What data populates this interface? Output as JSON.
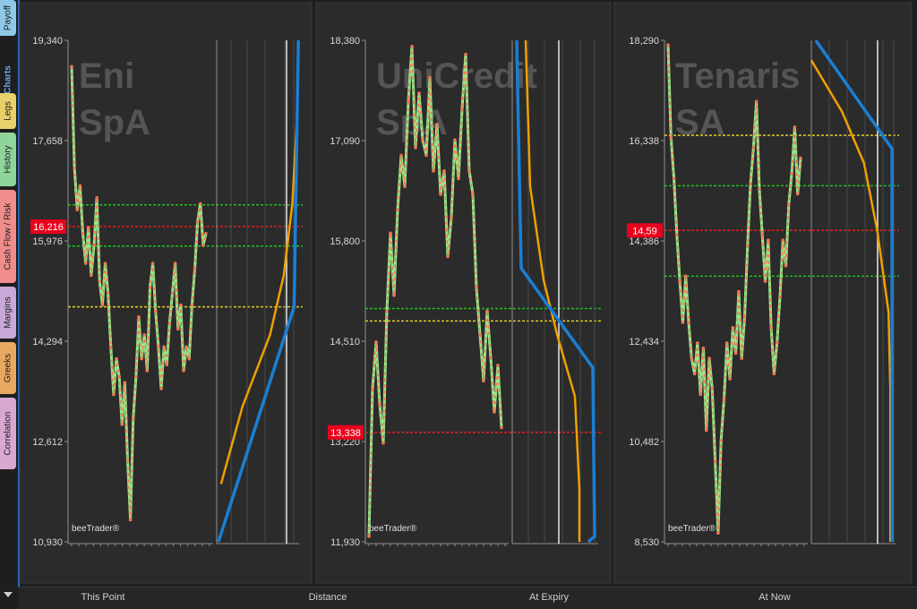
{
  "sidebar": {
    "tabs": [
      {
        "label": "Payoff",
        "color": "#8fc8e6",
        "active": false
      },
      {
        "label": "Charts",
        "color": "#6aa6e8",
        "active": true
      },
      {
        "label": "Legs",
        "color": "#e8d06a",
        "active": false
      },
      {
        "label": "History",
        "color": "#8fd49a",
        "active": false
      },
      {
        "label": "Cash Flow / Risk",
        "color": "#f08c8c",
        "active": false
      },
      {
        "label": "Margins",
        "color": "#c8a8d8",
        "active": false
      },
      {
        "label": "Greeks",
        "color": "#e8a860",
        "active": false
      },
      {
        "label": "Correlation",
        "color": "#d8a8d0",
        "active": false
      }
    ]
  },
  "bottom_bar": {
    "labels": [
      "This Point",
      "Distance",
      "At Expiry",
      "At Now"
    ]
  },
  "colors": {
    "panel_bg": "#2b2b2b",
    "price_orange": "#f07850",
    "price_green": "#90ee90",
    "curve_blue": "#1a7fd4",
    "curve_orange": "#f0a000",
    "line_green": "#20c020",
    "line_yellow": "#e0d020",
    "line_red": "#e02020",
    "marker_red": "#e8001c"
  },
  "chart_data": [
    {
      "type": "line",
      "title": "Eni SpA",
      "watermark": "beeTrader®",
      "ylim": [
        10930,
        19340
      ],
      "yticks": [
        "19,340",
        "17,658",
        "15,976",
        "14,294",
        "12,612",
        "10,930"
      ],
      "marker": "16,216",
      "marker_value": 16216,
      "levels": [
        {
          "value": 16580,
          "color": "green"
        },
        {
          "value": 16216,
          "color": "red"
        },
        {
          "value": 15890,
          "color": "green"
        },
        {
          "value": 14870,
          "color": "yellow"
        }
      ],
      "price_series": [
        18900,
        17200,
        16500,
        16900,
        16100,
        15600,
        16200,
        15400,
        15900,
        16700,
        15300,
        14900,
        15600,
        15100,
        14200,
        13400,
        14000,
        13700,
        12900,
        13600,
        12300,
        11300,
        13000,
        13700,
        14700,
        14000,
        14400,
        13800,
        15200,
        15600,
        14800,
        14200,
        13500,
        14200,
        13900,
        14600,
        15100,
        15600,
        14500,
        14900,
        13800,
        14200,
        14000,
        14900,
        15500,
        16300,
        16600,
        15900,
        16100
      ],
      "curves": {
        "blue": [
          [
            0.02,
            10930
          ],
          [
            0.9,
            14870
          ],
          [
            0.95,
            19340
          ]
        ],
        "orange": [
          [
            0.05,
            11900
          ],
          [
            0.3,
            13200
          ],
          [
            0.62,
            14400
          ],
          [
            0.78,
            15400
          ],
          [
            0.88,
            16600
          ],
          [
            0.94,
            18200
          ]
        ]
      }
    },
    {
      "type": "line",
      "title": "UniCredit SpA",
      "watermark": "beeTrader®",
      "ylim": [
        11930,
        18380
      ],
      "yticks": [
        "18,380",
        "17,090",
        "15,800",
        "14,510",
        "13,220",
        "11,930"
      ],
      "marker": "13,338",
      "marker_value": 13338,
      "levels": [
        {
          "value": 14930,
          "color": "green"
        },
        {
          "value": 14770,
          "color": "yellow"
        },
        {
          "value": 13338,
          "color": "red"
        }
      ],
      "price_series": [
        12000,
        13900,
        14500,
        13700,
        13200,
        14900,
        15900,
        15100,
        16200,
        16900,
        16500,
        17600,
        18300,
        17000,
        17700,
        17100,
        16900,
        17900,
        16700,
        17300,
        16400,
        16700,
        15600,
        16100,
        17100,
        16600,
        17500,
        18200,
        16700,
        16400,
        15200,
        14600,
        14000,
        14900,
        14300,
        13600,
        14200,
        13400
      ],
      "curves": {
        "blue": [
          [
            0.05,
            18380
          ],
          [
            0.1,
            15450
          ],
          [
            0.9,
            14170
          ],
          [
            0.92,
            12000
          ],
          [
            0.85,
            11930
          ]
        ],
        "orange": [
          [
            0.15,
            18380
          ],
          [
            0.2,
            16500
          ],
          [
            0.35,
            15300
          ],
          [
            0.5,
            14600
          ],
          [
            0.7,
            13800
          ],
          [
            0.75,
            12600
          ],
          [
            0.75,
            11930
          ]
        ]
      }
    },
    {
      "type": "line",
      "title": "Tenaris SA",
      "watermark": "beeTrader®",
      "ylim": [
        8530,
        18290
      ],
      "yticks": [
        "18,290",
        "16,338",
        "14,386",
        "12,434",
        "10,482",
        "8,530"
      ],
      "marker": "14,59",
      "marker_value": 14590,
      "levels": [
        {
          "value": 16440,
          "color": "yellow"
        },
        {
          "value": 15460,
          "color": "green"
        },
        {
          "value": 14590,
          "color": "red"
        },
        {
          "value": 13700,
          "color": "green"
        }
      ],
      "price_series": [
        18200,
        16400,
        15600,
        14500,
        13600,
        12800,
        13700,
        12800,
        12100,
        11800,
        12400,
        11400,
        12300,
        10700,
        12100,
        11500,
        10100,
        8700,
        10500,
        11300,
        12400,
        11700,
        12700,
        12200,
        13400,
        12100,
        12900,
        14300,
        15500,
        16200,
        17100,
        15400,
        14500,
        13600,
        14400,
        12700,
        11800,
        12400,
        13300,
        14400,
        13900,
        15100,
        15700,
        16600,
        15300,
        16000
      ],
      "curves": {
        "blue": [
          [
            0.05,
            18290
          ],
          [
            0.92,
            16180
          ],
          [
            0.92,
            8530
          ]
        ],
        "orange": [
          [
            0.0,
            17900
          ],
          [
            0.35,
            16900
          ],
          [
            0.6,
            15900
          ],
          [
            0.75,
            14600
          ],
          [
            0.88,
            13000
          ],
          [
            0.9,
            11500
          ],
          [
            0.9,
            8530
          ]
        ]
      }
    }
  ]
}
